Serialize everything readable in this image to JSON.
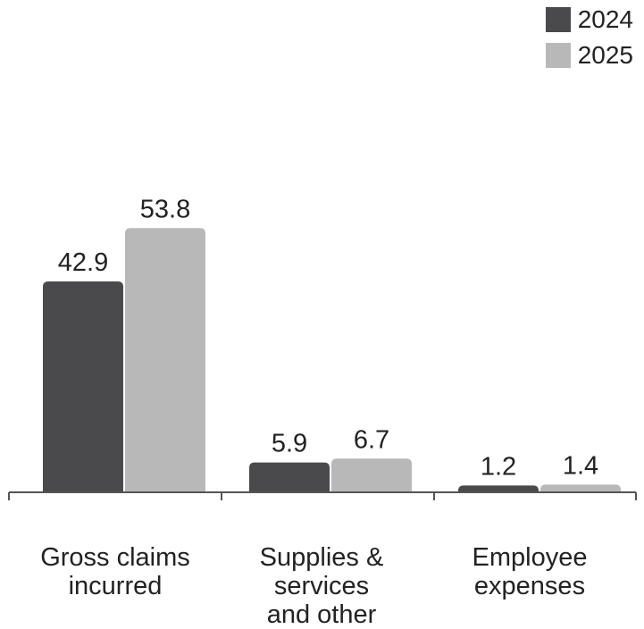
{
  "chart_data": {
    "type": "bar",
    "categories": [
      "Gross claims\nincurred",
      "Supplies &\nservices\nand other",
      "Employee\nexpenses"
    ],
    "series": [
      {
        "name": "2024",
        "values": [
          42.9,
          5.9,
          1.2
        ],
        "color": "#4a4a4c"
      },
      {
        "name": "2025",
        "values": [
          53.8,
          6.7,
          1.4
        ],
        "color": "#b8b8b8"
      }
    ],
    "value_labels": [
      [
        "42.9",
        "5.9",
        "1.2"
      ],
      [
        "53.8",
        "6.7",
        "1.4"
      ]
    ],
    "title": "",
    "xlabel": "",
    "ylabel": "",
    "ylim": [
      0,
      60
    ],
    "grid": false,
    "legend_position": "top-right",
    "axis_color": "#555555",
    "text_color": "#222222"
  }
}
